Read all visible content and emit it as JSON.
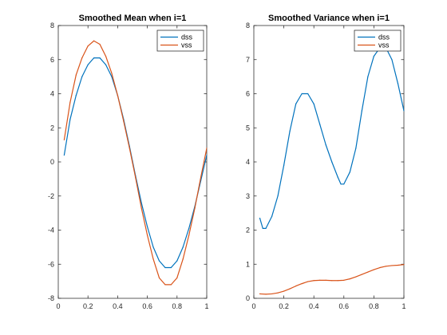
{
  "colors": {
    "dss": "#0072BD",
    "vss": "#D95319"
  },
  "chart_data": [
    {
      "type": "line",
      "title": "Smoothed Mean when i=1",
      "xlabel": "",
      "ylabel": "",
      "xlim": [
        0,
        1
      ],
      "ylim": [
        -8,
        8
      ],
      "x_ticks": [
        0,
        0.2,
        0.4,
        0.6,
        0.8,
        1
      ],
      "x_tick_labels": [
        "0",
        "0.2",
        "0.4",
        "0.6",
        "0.8",
        "1"
      ],
      "y_ticks": [
        -8,
        -6,
        -4,
        -2,
        0,
        2,
        4,
        6,
        8
      ],
      "y_tick_labels": [
        "-8",
        "-6",
        "-4",
        "-2",
        "0",
        "2",
        "4",
        "6",
        "8"
      ],
      "grid": false,
      "legend_location": "top-right",
      "series": [
        {
          "name": "dss",
          "x": [
            0.04,
            0.08,
            0.12,
            0.16,
            0.2,
            0.24,
            0.28,
            0.32,
            0.36,
            0.4,
            0.44,
            0.48,
            0.52,
            0.56,
            0.6,
            0.64,
            0.68,
            0.72,
            0.76,
            0.8,
            0.84,
            0.88,
            0.92,
            0.96,
            1.0
          ],
          "y": [
            0.4,
            2.5,
            3.9,
            5.0,
            5.7,
            6.1,
            6.1,
            5.7,
            5.0,
            3.9,
            2.5,
            0.9,
            -0.8,
            -2.4,
            -3.8,
            -5.0,
            -5.8,
            -6.2,
            -6.2,
            -5.8,
            -5.0,
            -3.9,
            -2.6,
            -1.1,
            0.4
          ]
        },
        {
          "name": "vss",
          "x": [
            0.04,
            0.08,
            0.12,
            0.16,
            0.2,
            0.24,
            0.28,
            0.32,
            0.36,
            0.4,
            0.44,
            0.48,
            0.52,
            0.56,
            0.6,
            0.64,
            0.68,
            0.72,
            0.76,
            0.8,
            0.84,
            0.88,
            0.92,
            0.96,
            1.0
          ],
          "y": [
            1.3,
            3.5,
            5.1,
            6.1,
            6.8,
            7.1,
            6.9,
            6.2,
            5.2,
            3.9,
            2.4,
            0.8,
            -0.9,
            -2.7,
            -4.3,
            -5.7,
            -6.8,
            -7.2,
            -7.2,
            -6.8,
            -5.7,
            -4.3,
            -2.7,
            -0.9,
            0.8
          ]
        }
      ]
    },
    {
      "type": "line",
      "title": "Smoothed Variance when i=1",
      "xlabel": "",
      "ylabel": "",
      "xlim": [
        0,
        1
      ],
      "ylim": [
        0,
        8
      ],
      "x_ticks": [
        0,
        0.2,
        0.4,
        0.6,
        0.8,
        1
      ],
      "x_tick_labels": [
        "0",
        "0.2",
        "0.4",
        "0.6",
        "0.8",
        "1"
      ],
      "y_ticks": [
        0,
        1,
        2,
        3,
        4,
        5,
        6,
        7,
        8
      ],
      "y_tick_labels": [
        "0",
        "1",
        "2",
        "3",
        "4",
        "5",
        "6",
        "7",
        "8"
      ],
      "grid": false,
      "legend_location": "top-right",
      "series": [
        {
          "name": "dss",
          "x": [
            0.04,
            0.06,
            0.08,
            0.12,
            0.16,
            0.2,
            0.24,
            0.28,
            0.32,
            0.36,
            0.4,
            0.44,
            0.48,
            0.52,
            0.56,
            0.58,
            0.6,
            0.64,
            0.68,
            0.72,
            0.76,
            0.8,
            0.84,
            0.88,
            0.92,
            0.96,
            1.0
          ],
          "y": [
            2.35,
            2.05,
            2.05,
            2.4,
            3.0,
            3.9,
            4.9,
            5.7,
            6.0,
            6.0,
            5.7,
            5.1,
            4.5,
            4.0,
            3.55,
            3.35,
            3.35,
            3.7,
            4.4,
            5.5,
            6.5,
            7.1,
            7.35,
            7.35,
            7.0,
            6.3,
            5.5
          ]
        },
        {
          "name": "vss",
          "x": [
            0.04,
            0.08,
            0.12,
            0.16,
            0.2,
            0.24,
            0.28,
            0.32,
            0.36,
            0.4,
            0.44,
            0.48,
            0.52,
            0.56,
            0.6,
            0.64,
            0.68,
            0.72,
            0.76,
            0.8,
            0.84,
            0.88,
            0.92,
            0.96,
            1.0
          ],
          "y": [
            0.13,
            0.12,
            0.13,
            0.16,
            0.21,
            0.28,
            0.36,
            0.43,
            0.49,
            0.52,
            0.53,
            0.53,
            0.52,
            0.52,
            0.53,
            0.57,
            0.63,
            0.7,
            0.77,
            0.84,
            0.9,
            0.94,
            0.96,
            0.97,
            0.99
          ]
        }
      ]
    }
  ]
}
